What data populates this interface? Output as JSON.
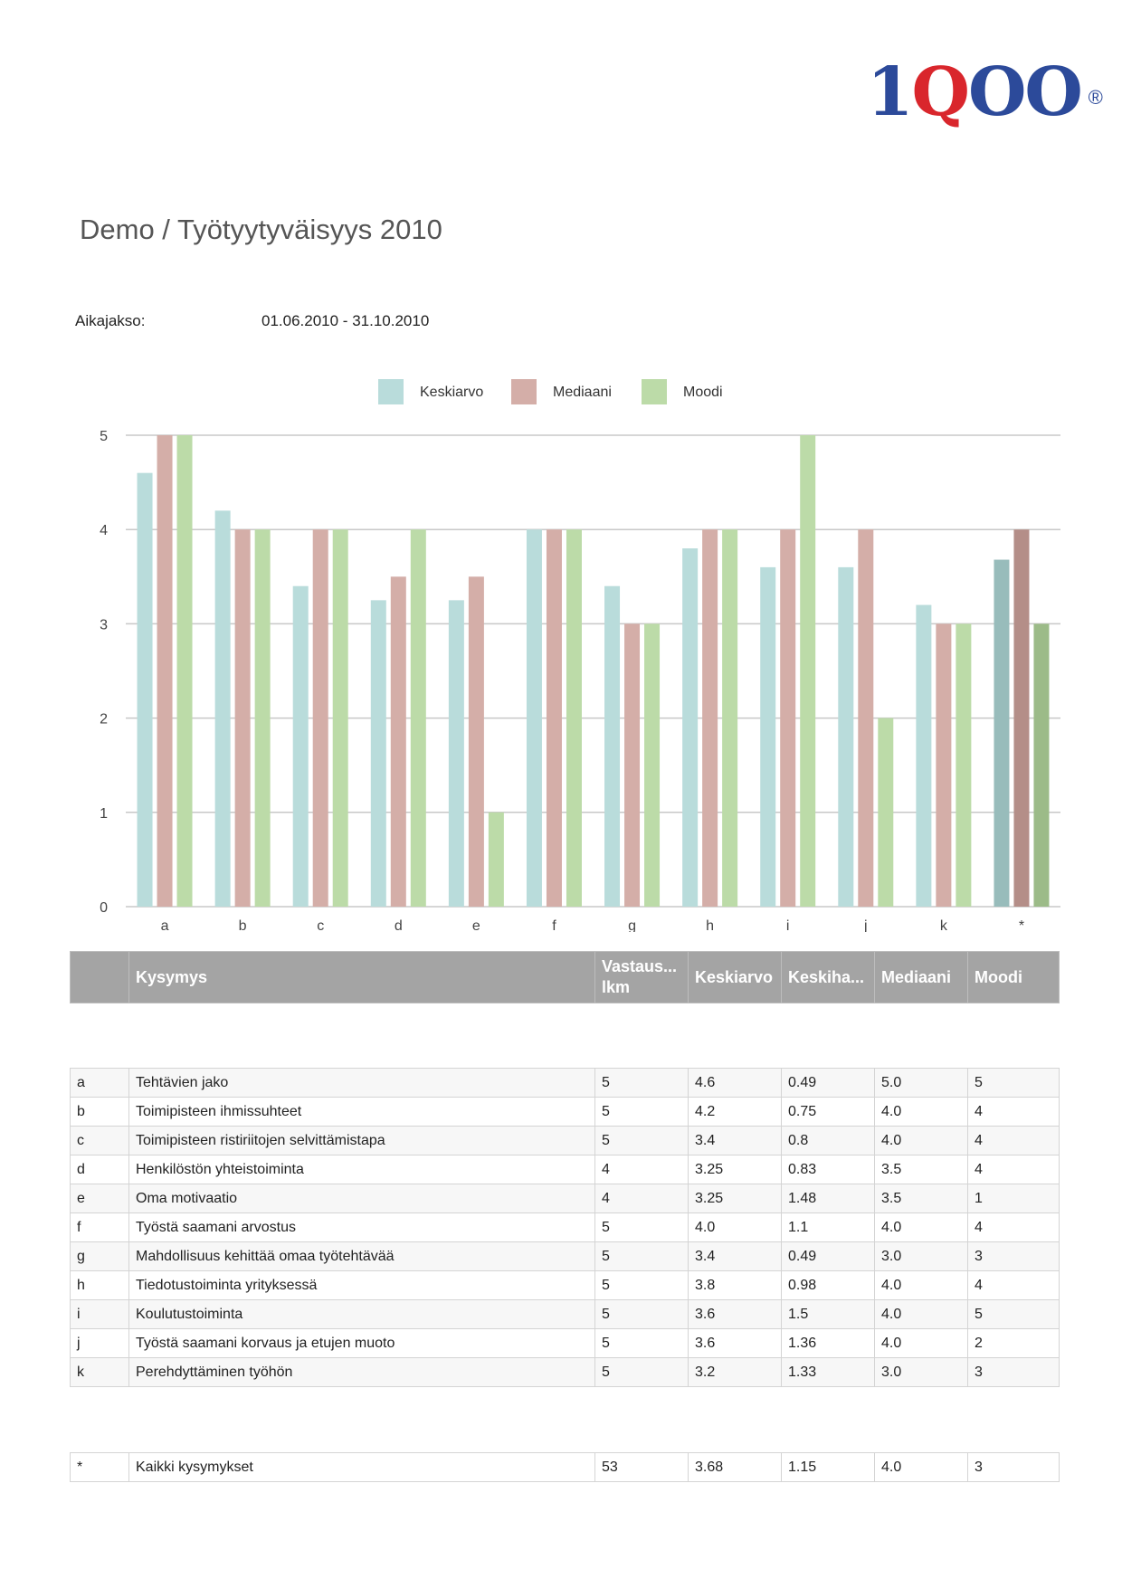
{
  "logo": {
    "part1": "1",
    "part2": "Q",
    "part3": "OO",
    "reg": "®"
  },
  "title": "Demo / Työtyytyväisyys 2010",
  "period": {
    "label": "Aikajakso:",
    "value": "01.06.2010 - 31.10.2010"
  },
  "chart_data": {
    "type": "bar",
    "categories": [
      "a",
      "b",
      "c",
      "d",
      "e",
      "f",
      "g",
      "h",
      "i",
      "j",
      "k",
      "*"
    ],
    "series": [
      {
        "name": "Keskiarvo",
        "color": "#b9dcdb",
        "values": [
          4.6,
          4.2,
          3.4,
          3.25,
          3.25,
          4.0,
          3.4,
          3.8,
          3.6,
          3.6,
          3.2,
          3.68
        ]
      },
      {
        "name": "Mediaani",
        "color": "#d4aea8",
        "values": [
          5,
          4,
          4,
          3.5,
          3.5,
          4,
          3,
          4,
          4,
          4,
          3,
          4
        ]
      },
      {
        "name": "Moodi",
        "color": "#bcdba8",
        "values": [
          5,
          4,
          4,
          4,
          1,
          4,
          3,
          4,
          5,
          2,
          3,
          3
        ]
      }
    ],
    "highlight_colors": [
      "#98bcbb",
      "#b48e88",
      "#9cbb88"
    ],
    "ylim": [
      0,
      5
    ],
    "yticks": [
      "0",
      "1",
      "2",
      "3",
      "4",
      "5"
    ],
    "legend_position": "top-center",
    "grid": true
  },
  "table": {
    "headers": [
      "",
      "Kysymys",
      "Vastaus...\nlkm",
      "Keskiarvo",
      "Keskiha...",
      "Mediaani",
      "Moodi"
    ],
    "rows": [
      [
        "a",
        "Tehtävien jako",
        "5",
        "4.6",
        "0.49",
        "5.0",
        "5"
      ],
      [
        "b",
        "Toimipisteen ihmissuhteet",
        "5",
        "4.2",
        "0.75",
        "4.0",
        "4"
      ],
      [
        "c",
        "Toimipisteen ristiriitojen selvittämistapa",
        "5",
        "3.4",
        "0.8",
        "4.0",
        "4"
      ],
      [
        "d",
        "Henkilöstön yhteistoiminta",
        "4",
        "3.25",
        "0.83",
        "3.5",
        "4"
      ],
      [
        "e",
        "Oma motivaatio",
        "4",
        "3.25",
        "1.48",
        "3.5",
        "1"
      ],
      [
        "f",
        "Työstä saamani arvostus",
        "5",
        "4.0",
        "1.1",
        "4.0",
        "4"
      ],
      [
        "g",
        "Mahdollisuus kehittää omaa työtehtävää",
        "5",
        "3.4",
        "0.49",
        "3.0",
        "3"
      ],
      [
        "h",
        "Tiedotustoiminta yrityksessä",
        "5",
        "3.8",
        "0.98",
        "4.0",
        "4"
      ],
      [
        "i",
        "Koulutustoiminta",
        "5",
        "3.6",
        "1.5",
        "4.0",
        "5"
      ],
      [
        "j",
        "Työstä saamani korvaus ja etujen muoto",
        "5",
        "3.6",
        "1.36",
        "4.0",
        "2"
      ],
      [
        "k",
        "Perehdyttäminen työhön",
        "5",
        "3.2",
        "1.33",
        "3.0",
        "3"
      ]
    ],
    "total": [
      "*",
      "Kaikki kysymykset",
      "53",
      "3.68",
      "1.15",
      "4.0",
      "3"
    ]
  }
}
